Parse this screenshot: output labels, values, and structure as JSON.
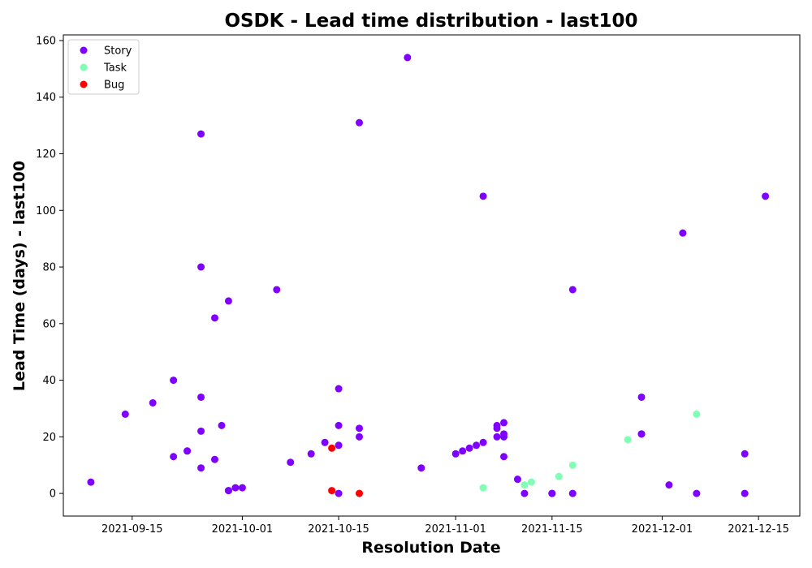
{
  "chart_data": {
    "type": "scatter",
    "title": "OSDK - Lead time distribution - last100",
    "xlabel": "Resolution Date",
    "ylabel": "Lead Time (days) - last100",
    "x_ticks": [
      "2021-09-15",
      "2021-10-01",
      "2021-10-15",
      "2021-11-01",
      "2021-11-15",
      "2021-12-01",
      "2021-12-15"
    ],
    "y_ticks": [
      "0",
      "20",
      "40",
      "60",
      "80",
      "100",
      "120",
      "140",
      "160"
    ],
    "xlim": [
      "2021-09-05",
      "2021-12-21"
    ],
    "ylim": [
      -8,
      162
    ],
    "legend_position": "upper-left",
    "series": [
      {
        "name": "Story",
        "color": "#8000ff",
        "points": [
          [
            "2021-09-09",
            4
          ],
          [
            "2021-09-14",
            28
          ],
          [
            "2021-09-18",
            32
          ],
          [
            "2021-09-21",
            40
          ],
          [
            "2021-09-21",
            13
          ],
          [
            "2021-09-23",
            15
          ],
          [
            "2021-09-23",
            15
          ],
          [
            "2021-09-25",
            34
          ],
          [
            "2021-09-25",
            127
          ],
          [
            "2021-09-25",
            80
          ],
          [
            "2021-09-25",
            22
          ],
          [
            "2021-09-25",
            9
          ],
          [
            "2021-09-27",
            62
          ],
          [
            "2021-09-27",
            12
          ],
          [
            "2021-09-28",
            24
          ],
          [
            "2021-09-29",
            68
          ],
          [
            "2021-09-29",
            1
          ],
          [
            "2021-09-29",
            1
          ],
          [
            "2021-09-30",
            2
          ],
          [
            "2021-10-01",
            2
          ],
          [
            "2021-10-06",
            72
          ],
          [
            "2021-10-08",
            11
          ],
          [
            "2021-10-11",
            14
          ],
          [
            "2021-10-13",
            18
          ],
          [
            "2021-10-15",
            37
          ],
          [
            "2021-10-15",
            0
          ],
          [
            "2021-10-15",
            24
          ],
          [
            "2021-10-15",
            17
          ],
          [
            "2021-10-18",
            131
          ],
          [
            "2021-10-18",
            23
          ],
          [
            "2021-10-18",
            20
          ],
          [
            "2021-10-25",
            154
          ],
          [
            "2021-10-27",
            9
          ],
          [
            "2021-11-01",
            14
          ],
          [
            "2021-11-02",
            15
          ],
          [
            "2021-11-03",
            16
          ],
          [
            "2021-11-04",
            17
          ],
          [
            "2021-11-05",
            18
          ],
          [
            "2021-11-05",
            105
          ],
          [
            "2021-11-07",
            20
          ],
          [
            "2021-11-07",
            23
          ],
          [
            "2021-11-07",
            24
          ],
          [
            "2021-11-08",
            25
          ],
          [
            "2021-11-08",
            20
          ],
          [
            "2021-11-08",
            21
          ],
          [
            "2021-11-08",
            13
          ],
          [
            "2021-11-10",
            5
          ],
          [
            "2021-11-11",
            0
          ],
          [
            "2021-11-15",
            0
          ],
          [
            "2021-11-15",
            0
          ],
          [
            "2021-11-18",
            0
          ],
          [
            "2021-11-18",
            72
          ],
          [
            "2021-11-28",
            34
          ],
          [
            "2021-11-28",
            21
          ],
          [
            "2021-11-28",
            21
          ],
          [
            "2021-12-02",
            3
          ],
          [
            "2021-12-04",
            92
          ],
          [
            "2021-12-06",
            0
          ],
          [
            "2021-12-13",
            14
          ],
          [
            "2021-12-13",
            0
          ],
          [
            "2021-12-16",
            105
          ]
        ]
      },
      {
        "name": "Task",
        "color": "#80ffb4",
        "points": [
          [
            "2021-11-05",
            2
          ],
          [
            "2021-11-11",
            3
          ],
          [
            "2021-11-12",
            4
          ],
          [
            "2021-11-16",
            6
          ],
          [
            "2021-11-18",
            10
          ],
          [
            "2021-11-26",
            19
          ],
          [
            "2021-12-06",
            28
          ]
        ]
      },
      {
        "name": "Bug",
        "color": "#ff0000",
        "points": [
          [
            "2021-10-14",
            16
          ],
          [
            "2021-10-14",
            1
          ],
          [
            "2021-10-18",
            0
          ]
        ]
      }
    ]
  }
}
